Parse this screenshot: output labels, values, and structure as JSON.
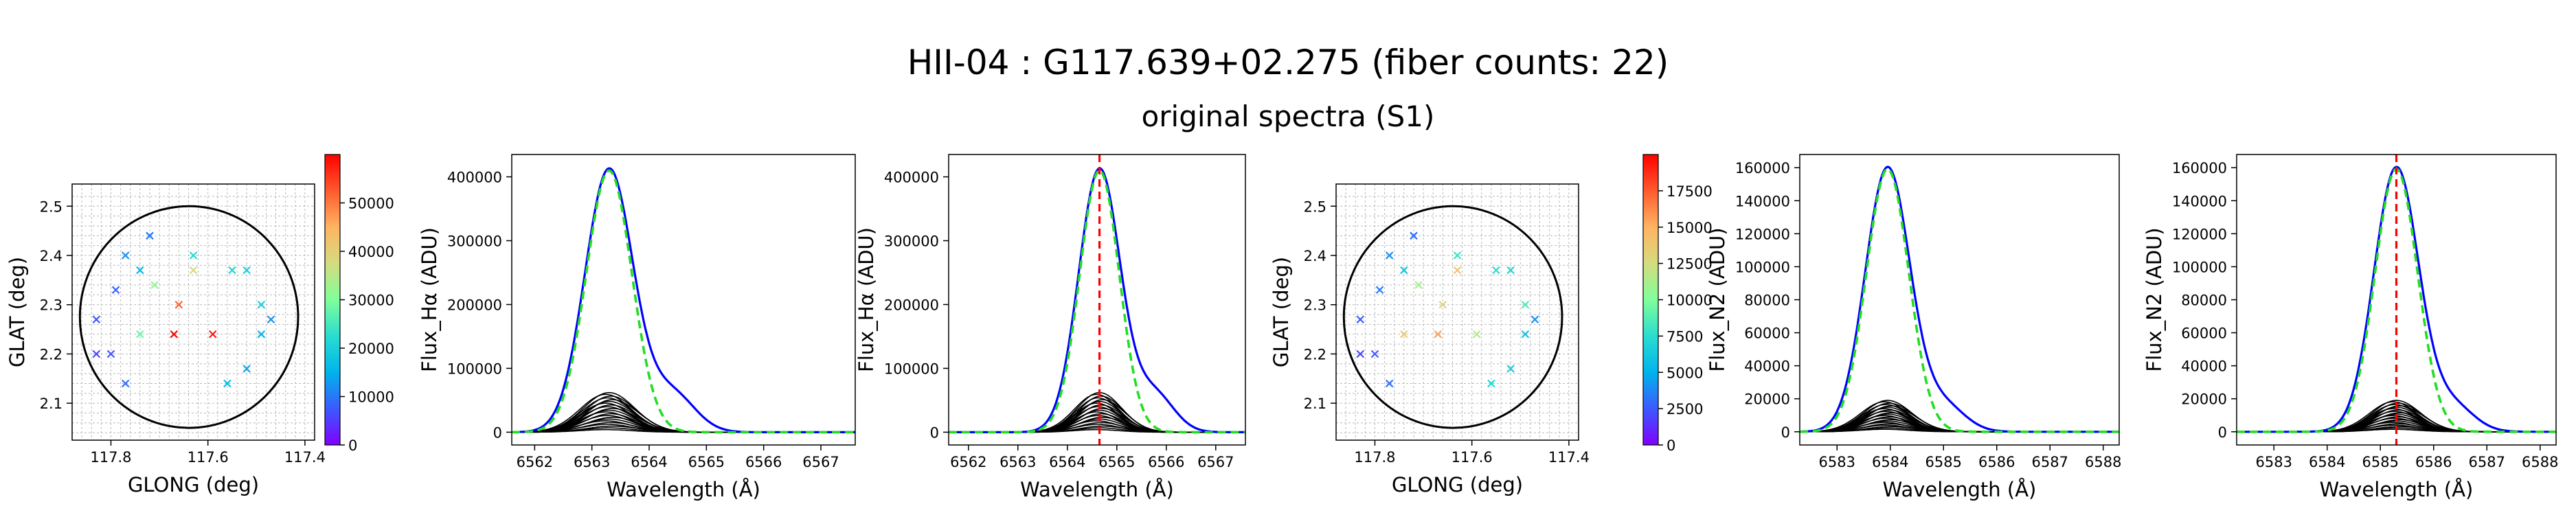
{
  "header": {
    "title": "HII-04 : G117.639+02.275 (fiber counts: 22)",
    "subtitle": "original spectra (S1)"
  },
  "colors": {
    "observed": "#0000ff",
    "fit": "#22dd22",
    "components": "#000000",
    "marker": "#ff0000",
    "circle": "#000000",
    "colormap": [
      "#8000ff",
      "#3c5aff",
      "#00b4eb",
      "#2adcd0",
      "#80ff9a",
      "#d4dc7f",
      "#ffb462",
      "#ff5a2e",
      "#ff0000"
    ]
  },
  "chart_data": [
    {
      "type": "scatter",
      "panel": "fiber-map-halpha",
      "xlabel": "GLONG (deg)",
      "ylabel": "GLAT (deg)",
      "xlim": [
        117.88,
        117.38
      ],
      "ylim": [
        2.025,
        2.545
      ],
      "xticks": [
        117.8,
        117.6,
        117.4
      ],
      "xtick_labels": [
        "117.8",
        "117.6",
        "117.4"
      ],
      "yticks": [
        2.1,
        2.2,
        2.3,
        2.4,
        2.5
      ],
      "ytick_labels": [
        "2.1",
        "2.2",
        "2.3",
        "2.4",
        "2.5"
      ],
      "circle": {
        "center": [
          117.639,
          2.275
        ],
        "radius": 0.225
      },
      "colorbar": {
        "range": [
          0,
          60000
        ],
        "ticks": [
          0,
          10000,
          20000,
          30000,
          40000,
          50000
        ],
        "tick_labels": [
          "0",
          "10000",
          "20000",
          "30000",
          "40000",
          "50000"
        ]
      },
      "points": [
        {
          "x": 117.72,
          "y": 2.44,
          "v": 10000
        },
        {
          "x": 117.77,
          "y": 2.4,
          "v": 12000
        },
        {
          "x": 117.74,
          "y": 2.37,
          "v": 16000
        },
        {
          "x": 117.63,
          "y": 2.4,
          "v": 22000
        },
        {
          "x": 117.63,
          "y": 2.37,
          "v": 38000
        },
        {
          "x": 117.79,
          "y": 2.33,
          "v": 8000
        },
        {
          "x": 117.71,
          "y": 2.34,
          "v": 32000
        },
        {
          "x": 117.66,
          "y": 2.3,
          "v": 52000
        },
        {
          "x": 117.83,
          "y": 2.27,
          "v": 7000
        },
        {
          "x": 117.74,
          "y": 2.24,
          "v": 28000
        },
        {
          "x": 117.67,
          "y": 2.24,
          "v": 60000
        },
        {
          "x": 117.59,
          "y": 2.24,
          "v": 58000
        },
        {
          "x": 117.83,
          "y": 2.2,
          "v": 6000
        },
        {
          "x": 117.8,
          "y": 2.2,
          "v": 7000
        },
        {
          "x": 117.77,
          "y": 2.14,
          "v": 9000
        },
        {
          "x": 117.55,
          "y": 2.37,
          "v": 21000
        },
        {
          "x": 117.52,
          "y": 2.37,
          "v": 20000
        },
        {
          "x": 117.49,
          "y": 2.3,
          "v": 20000
        },
        {
          "x": 117.47,
          "y": 2.27,
          "v": 12000
        },
        {
          "x": 117.49,
          "y": 2.24,
          "v": 15000
        },
        {
          "x": 117.52,
          "y": 2.17,
          "v": 14000
        },
        {
          "x": 117.56,
          "y": 2.14,
          "v": 16000
        }
      ]
    },
    {
      "type": "line",
      "panel": "halpha-spectrum",
      "xlabel": "Wavelength (Å)",
      "ylabel": "Flux_Hα (ADU)",
      "xlim": [
        6561.6,
        6567.6
      ],
      "ylim": [
        -20000,
        435000
      ],
      "xticks": [
        6562,
        6563,
        6564,
        6565,
        6566,
        6567
      ],
      "xtick_labels": [
        "6562",
        "6563",
        "6564",
        "6565",
        "6566",
        "6567"
      ],
      "yticks": [
        0,
        100000,
        200000,
        300000,
        400000
      ],
      "ytick_labels": [
        "0",
        "100000",
        "200000",
        "300000",
        "400000"
      ],
      "center": 6563.3,
      "peak": 412000,
      "sigma": 0.42,
      "shoulder": {
        "amp": 60000,
        "center": 6564.4,
        "sigma": 0.4
      },
      "components": {
        "count": 22,
        "max": 62000,
        "min": 4000,
        "sigma": 0.45
      },
      "marker": null
    },
    {
      "type": "line",
      "panel": "halpha-spectrum-marked",
      "xlabel": "Wavelength (Å)",
      "ylabel": "Flux_Hα (ADU)",
      "xlim": [
        6561.6,
        6567.6
      ],
      "ylim": [
        -20000,
        435000
      ],
      "xticks": [
        6562,
        6563,
        6564,
        6565,
        6566,
        6567
      ],
      "xtick_labels": [
        "6562",
        "6563",
        "6564",
        "6565",
        "6566",
        "6567"
      ],
      "yticks": [
        0,
        100000,
        200000,
        300000,
        400000
      ],
      "ytick_labels": [
        "0",
        "100000",
        "200000",
        "300000",
        "400000"
      ],
      "center": 6564.65,
      "peak": 412000,
      "sigma": 0.42,
      "shoulder": {
        "amp": 60000,
        "center": 6565.75,
        "sigma": 0.4
      },
      "components": {
        "count": 22,
        "max": 62000,
        "min": 4000,
        "sigma": 0.45
      },
      "marker": 6564.65
    },
    {
      "type": "scatter",
      "panel": "fiber-map-n2",
      "xlabel": "GLONG (deg)",
      "ylabel": "GLAT (deg)",
      "xlim": [
        117.88,
        117.38
      ],
      "ylim": [
        2.025,
        2.545
      ],
      "xticks": [
        117.8,
        117.6,
        117.4
      ],
      "xtick_labels": [
        "117.8",
        "117.6",
        "117.4"
      ],
      "yticks": [
        2.1,
        2.2,
        2.3,
        2.4,
        2.5
      ],
      "ytick_labels": [
        "2.1",
        "2.2",
        "2.3",
        "2.4",
        "2.5"
      ],
      "circle": {
        "center": [
          117.639,
          2.275
        ],
        "radius": 0.225
      },
      "colorbar": {
        "range": [
          0,
          20000
        ],
        "ticks": [
          0,
          2500,
          5000,
          7500,
          10000,
          12500,
          15000,
          17500
        ],
        "tick_labels": [
          "0",
          "2500",
          "5000",
          "7500",
          "10000",
          "12500",
          "15000",
          "17500"
        ]
      },
      "points": [
        {
          "x": 117.72,
          "y": 2.44,
          "v": 3000
        },
        {
          "x": 117.77,
          "y": 2.4,
          "v": 4000
        },
        {
          "x": 117.74,
          "y": 2.37,
          "v": 6000
        },
        {
          "x": 117.63,
          "y": 2.4,
          "v": 8000
        },
        {
          "x": 117.63,
          "y": 2.37,
          "v": 14000
        },
        {
          "x": 117.79,
          "y": 2.33,
          "v": 3500
        },
        {
          "x": 117.71,
          "y": 2.34,
          "v": 11000
        },
        {
          "x": 117.66,
          "y": 2.3,
          "v": 13000
        },
        {
          "x": 117.83,
          "y": 2.27,
          "v": 2500
        },
        {
          "x": 117.74,
          "y": 2.24,
          "v": 13500
        },
        {
          "x": 117.67,
          "y": 2.24,
          "v": 15500
        },
        {
          "x": 117.59,
          "y": 2.24,
          "v": 11500
        },
        {
          "x": 117.83,
          "y": 2.2,
          "v": 2000
        },
        {
          "x": 117.8,
          "y": 2.2,
          "v": 2500
        },
        {
          "x": 117.77,
          "y": 2.14,
          "v": 3000
        },
        {
          "x": 117.55,
          "y": 2.37,
          "v": 7500
        },
        {
          "x": 117.52,
          "y": 2.37,
          "v": 7000
        },
        {
          "x": 117.49,
          "y": 2.3,
          "v": 8500
        },
        {
          "x": 117.47,
          "y": 2.27,
          "v": 4000
        },
        {
          "x": 117.49,
          "y": 2.24,
          "v": 6000
        },
        {
          "x": 117.52,
          "y": 2.17,
          "v": 6500
        },
        {
          "x": 117.56,
          "y": 2.14,
          "v": 7000
        }
      ]
    },
    {
      "type": "line",
      "panel": "n2-spectrum",
      "xlabel": "Wavelength (Å)",
      "ylabel": "Flux_N2 (ADU)",
      "xlim": [
        6582.3,
        6588.3
      ],
      "ylim": [
        -8000,
        168000
      ],
      "xticks": [
        6583,
        6584,
        6585,
        6586,
        6587,
        6588
      ],
      "xtick_labels": [
        "6583",
        "6584",
        "6585",
        "6586",
        "6587",
        "6588"
      ],
      "yticks": [
        0,
        20000,
        40000,
        60000,
        80000,
        100000,
        120000,
        140000,
        160000
      ],
      "ytick_labels": [
        "0",
        "20000",
        "40000",
        "60000",
        "80000",
        "100000",
        "120000",
        "140000",
        "160000"
      ],
      "center": 6583.95,
      "peak": 160000,
      "sigma": 0.42,
      "shoulder": {
        "amp": 16000,
        "center": 6585.0,
        "sigma": 0.4
      },
      "components": {
        "count": 22,
        "max": 19000,
        "min": 1500,
        "sigma": 0.45
      },
      "marker": null
    },
    {
      "type": "line",
      "panel": "n2-spectrum-marked",
      "xlabel": "Wavelength (Å)",
      "ylabel": "Flux_N2 (ADU)",
      "xlim": [
        6582.3,
        6588.3
      ],
      "ylim": [
        -8000,
        168000
      ],
      "xticks": [
        6583,
        6584,
        6585,
        6586,
        6587,
        6588
      ],
      "xtick_labels": [
        "6583",
        "6584",
        "6585",
        "6586",
        "6587",
        "6588"
      ],
      "yticks": [
        0,
        20000,
        40000,
        60000,
        80000,
        100000,
        120000,
        140000,
        160000
      ],
      "ytick_labels": [
        "0",
        "20000",
        "40000",
        "60000",
        "80000",
        "100000",
        "120000",
        "140000",
        "160000"
      ],
      "center": 6585.3,
      "peak": 160000,
      "sigma": 0.42,
      "shoulder": {
        "amp": 16000,
        "center": 6586.35,
        "sigma": 0.4
      },
      "components": {
        "count": 22,
        "max": 19000,
        "min": 1500,
        "sigma": 0.45
      },
      "marker": 6585.3
    }
  ]
}
